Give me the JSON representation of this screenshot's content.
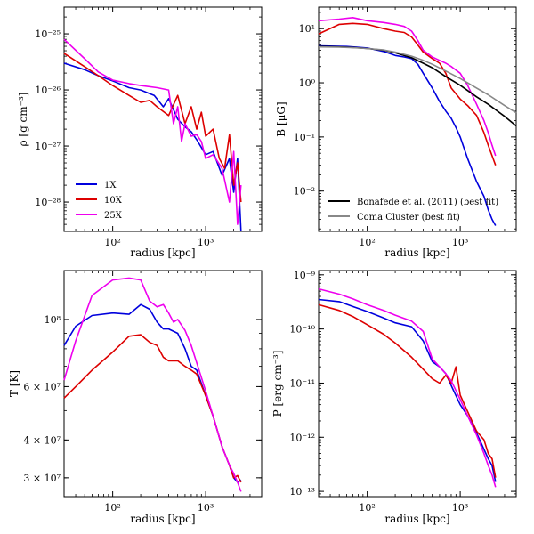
{
  "chart_data": [
    {
      "type": "line",
      "title": "",
      "xlabel": "radius [kpc]",
      "ylabel": "ρ  [g cm⁻³]",
      "xscale": "log",
      "yscale": "log",
      "xlim": [
        30,
        4000
      ],
      "ylim": [
        3e-29,
        3e-25
      ],
      "xticks": [
        {
          "v": 100,
          "label": "10²"
        },
        {
          "v": 1000,
          "label": "10³"
        }
      ],
      "yticks": [
        {
          "v": 1e-28,
          "label": "10⁻²⁸"
        },
        {
          "v": 1e-27,
          "label": "10⁻²⁷"
        },
        {
          "v": 1e-26,
          "label": "10⁻²⁶"
        },
        {
          "v": 1e-25,
          "label": "10⁻²⁵"
        }
      ],
      "legend_position": "bottom-left",
      "legend": [
        "1X",
        "10X",
        "25X"
      ],
      "series": [
        {
          "name": "1X",
          "color": "#0000dd",
          "x": [
            30,
            50,
            70,
            100,
            150,
            200,
            280,
            350,
            400,
            500,
            600,
            700,
            800,
            1000,
            1200,
            1500,
            1800,
            2000,
            2200,
            2400
          ],
          "y": [
            3e-26,
            2.3e-26,
            1.8e-26,
            1.45e-26,
            1.1e-26,
            1e-26,
            8e-27,
            5e-27,
            7e-27,
            3e-27,
            2.2e-27,
            1.8e-27,
            1.3e-27,
            7e-28,
            8e-28,
            3e-28,
            6e-28,
            1.5e-28,
            6e-28,
            3e-29
          ]
        },
        {
          "name": "10X",
          "color": "#dd0000",
          "x": [
            30,
            50,
            70,
            100,
            150,
            200,
            250,
            300,
            400,
            500,
            600,
            700,
            800,
            900,
            1000,
            1200,
            1400,
            1600,
            1800,
            2000,
            2200,
            2400
          ],
          "y": [
            4.5e-26,
            2.6e-26,
            1.8e-26,
            1.2e-26,
            8e-27,
            6e-27,
            6.5e-27,
            5e-27,
            3.5e-27,
            8e-27,
            2.5e-27,
            5e-27,
            2e-27,
            4e-27,
            1.5e-27,
            2e-27,
            6e-28,
            4e-28,
            1.6e-27,
            2e-28,
            5e-28,
            1e-28
          ]
        },
        {
          "name": "25X",
          "color": "#ee00ee",
          "x": [
            30,
            50,
            70,
            100,
            150,
            200,
            300,
            400,
            450,
            500,
            550,
            600,
            700,
            800,
            900,
            1000,
            1200,
            1500,
            1800,
            2000,
            2200,
            2400
          ],
          "y": [
            8e-26,
            3.6e-26,
            2.1e-26,
            1.5e-26,
            1.3e-26,
            1.2e-26,
            1.1e-26,
            1e-26,
            2.5e-27,
            5e-27,
            1.2e-27,
            2.5e-27,
            1.5e-27,
            1.6e-27,
            1.2e-27,
            6e-28,
            7e-28,
            4e-28,
            1e-28,
            8e-28,
            4e-29,
            2e-28
          ]
        }
      ]
    },
    {
      "type": "line",
      "title": "",
      "xlabel": "radius [kpc]",
      "ylabel": "B  [μG]",
      "xscale": "log",
      "yscale": "log",
      "xlim": [
        30,
        4000
      ],
      "ylim": [
        0.0018,
        25
      ],
      "xticks": [
        {
          "v": 100,
          "label": "10²"
        },
        {
          "v": 1000,
          "label": "10³"
        }
      ],
      "yticks": [
        {
          "v": 0.01,
          "label": "10⁻²"
        },
        {
          "v": 0.1,
          "label": "10⁻¹"
        },
        {
          "v": 1,
          "label": "10⁰"
        },
        {
          "v": 10,
          "label": "10¹"
        }
      ],
      "legend_position": "bottom-right",
      "legend": [
        "Bonafede et al. (2011) (best fit)",
        "Coma Cluster (best fit)"
      ],
      "series": [
        {
          "name": "1X",
          "color": "#0000dd",
          "x": [
            30,
            60,
            100,
            150,
            200,
            250,
            300,
            350,
            400,
            500,
            600,
            700,
            800,
            900,
            1000,
            1200,
            1500,
            1800,
            2000,
            2200,
            2400
          ],
          "y": [
            4.8,
            4.7,
            4.4,
            3.8,
            3.2,
            3,
            2.8,
            2.2,
            1.5,
            0.8,
            0.45,
            0.3,
            0.22,
            0.15,
            0.1,
            0.04,
            0.015,
            0.008,
            0.0045,
            0.003,
            0.0023
          ]
        },
        {
          "name": "10X",
          "color": "#dd0000",
          "x": [
            30,
            50,
            70,
            100,
            150,
            200,
            250,
            300,
            350,
            400,
            500,
            600,
            700,
            800,
            1000,
            1200,
            1500,
            1800,
            2000,
            2200,
            2400
          ],
          "y": [
            8,
            12,
            12.5,
            12,
            10,
            9,
            8.5,
            7,
            5,
            3.7,
            2.8,
            2.3,
            1.5,
            0.8,
            0.5,
            0.38,
            0.25,
            0.12,
            0.07,
            0.045,
            0.03
          ]
        },
        {
          "name": "25X",
          "color": "#ee00ee",
          "x": [
            30,
            50,
            70,
            100,
            150,
            200,
            250,
            300,
            350,
            400,
            500,
            600,
            700,
            800,
            1000,
            1200,
            1500,
            1800,
            2000,
            2200,
            2400
          ],
          "y": [
            14,
            15,
            16,
            14,
            13,
            12,
            11,
            9,
            6,
            4,
            3,
            2.6,
            2.3,
            2,
            1.5,
            0.9,
            0.4,
            0.2,
            0.12,
            0.07,
            0.045
          ]
        },
        {
          "name": "Bonafede et al. (2011) (best fit)",
          "color": "#000000",
          "x": [
            30,
            50,
            70,
            100,
            150,
            200,
            300,
            400,
            500,
            700,
            1000,
            1500,
            2000,
            3000,
            4000
          ],
          "y": [
            4.7,
            4.6,
            4.5,
            4.3,
            4,
            3.6,
            2.9,
            2.3,
            1.9,
            1.3,
            0.9,
            0.55,
            0.4,
            0.24,
            0.16
          ]
        },
        {
          "name": "Coma Cluster (best fit)",
          "color": "#888888",
          "x": [
            30,
            50,
            70,
            100,
            150,
            200,
            300,
            400,
            500,
            700,
            1000,
            1500,
            2000,
            3000,
            4000
          ],
          "y": [
            4.6,
            4.55,
            4.45,
            4.3,
            4.05,
            3.7,
            3.1,
            2.6,
            2.2,
            1.65,
            1.2,
            0.8,
            0.6,
            0.38,
            0.28
          ]
        }
      ]
    },
    {
      "type": "line",
      "title": "",
      "xlabel": "radius [kpc]",
      "ylabel": "T  [K]",
      "xscale": "log",
      "yscale": "log",
      "xlim": [
        30,
        4000
      ],
      "ylim": [
        26000000.0,
        145000000.0
      ],
      "xticks": [
        {
          "v": 100,
          "label": "10²"
        },
        {
          "v": 1000,
          "label": "10³"
        }
      ],
      "yticks": [
        {
          "v": 30000000.0,
          "label": "3 × 10⁷"
        },
        {
          "v": 40000000.0,
          "label": "4 × 10⁷"
        },
        {
          "v": 60000000.0,
          "label": "6 × 10⁷"
        },
        {
          "v": 100000000.0,
          "label": "10⁸"
        }
      ],
      "series": [
        {
          "name": "1X",
          "color": "#0000dd",
          "x": [
            30,
            40,
            60,
            100,
            150,
            200,
            250,
            300,
            350,
            400,
            500,
            600,
            700,
            800,
            1000,
            1200,
            1500,
            1800,
            2000,
            2200,
            2400
          ],
          "y": [
            82000000.0,
            95000000.0,
            103000000.0,
            105000000.0,
            104000000.0,
            112000000.0,
            108000000.0,
            98000000.0,
            93000000.0,
            93000000.0,
            90000000.0,
            80000000.0,
            70000000.0,
            68000000.0,
            56000000.0,
            48000000.0,
            38000000.0,
            33000000.0,
            30000000.0,
            29000000.0,
            29500000.0
          ]
        },
        {
          "name": "10X",
          "color": "#dd0000",
          "x": [
            30,
            40,
            60,
            100,
            150,
            200,
            250,
            300,
            350,
            400,
            500,
            600,
            700,
            800,
            1000,
            1200,
            1500,
            1800,
            2000,
            2200,
            2400
          ],
          "y": [
            55000000.0,
            60000000.0,
            68000000.0,
            78000000.0,
            88000000.0,
            89000000.0,
            84000000.0,
            82000000.0,
            75000000.0,
            73000000.0,
            73000000.0,
            70000000.0,
            68000000.0,
            66000000.0,
            56000000.0,
            48000000.0,
            38000000.0,
            33000000.0,
            30000000.0,
            30500000.0,
            29000000.0
          ]
        },
        {
          "name": "25X",
          "color": "#ee00ee",
          "x": [
            30,
            40,
            60,
            100,
            150,
            200,
            250,
            300,
            350,
            400,
            450,
            500,
            600,
            700,
            800,
            1000,
            1200,
            1500,
            1800,
            2000,
            2200,
            2400
          ],
          "y": [
            63000000.0,
            85000000.0,
            120000000.0,
            135000000.0,
            137000000.0,
            135000000.0,
            115000000.0,
            110000000.0,
            112000000.0,
            105000000.0,
            98000000.0,
            100000000.0,
            92000000.0,
            82000000.0,
            72000000.0,
            58000000.0,
            48000000.0,
            38000000.0,
            33000000.0,
            31000000.0,
            29000000.0,
            27000000.0
          ]
        }
      ]
    },
    {
      "type": "line",
      "title": "",
      "xlabel": "radius [kpc]",
      "ylabel": "P  [erg cm⁻³]",
      "xscale": "log",
      "yscale": "log",
      "xlim": [
        30,
        4000
      ],
      "ylim": [
        8e-14,
        1.2e-09
      ],
      "xticks": [
        {
          "v": 100,
          "label": "10²"
        },
        {
          "v": 1000,
          "label": "10³"
        }
      ],
      "yticks": [
        {
          "v": 1e-13,
          "label": "10⁻¹³"
        },
        {
          "v": 1e-12,
          "label": "10⁻¹²"
        },
        {
          "v": 1e-11,
          "label": "10⁻¹¹"
        },
        {
          "v": 1e-10,
          "label": "10⁻¹⁰"
        },
        {
          "v": 1e-09,
          "label": "10⁻⁹"
        }
      ],
      "series": [
        {
          "name": "1X",
          "color": "#0000dd",
          "x": [
            30,
            50,
            70,
            100,
            150,
            200,
            300,
            400,
            500,
            600,
            700,
            800,
            1000,
            1200,
            1500,
            1800,
            2000,
            2200,
            2400
          ],
          "y": [
            3.5e-10,
            3.2e-10,
            2.6e-10,
            2.1e-10,
            1.6e-10,
            1.3e-10,
            1.1e-10,
            6e-11,
            2.5e-11,
            2e-11,
            1.5e-11,
            9e-12,
            4e-12,
            2.5e-12,
            1.2e-12,
            6e-13,
            4e-13,
            3e-13,
            1.5e-13
          ]
        },
        {
          "name": "10X",
          "color": "#dd0000",
          "x": [
            30,
            50,
            70,
            100,
            150,
            200,
            300,
            400,
            500,
            600,
            700,
            800,
            900,
            1000,
            1200,
            1500,
            1800,
            2000,
            2200,
            2400
          ],
          "y": [
            2.8e-10,
            2.2e-10,
            1.7e-10,
            1.2e-10,
            8e-11,
            5.5e-11,
            3e-11,
            1.8e-11,
            1.2e-11,
            1e-11,
            1.4e-11,
            1e-11,
            2e-11,
            6e-12,
            3e-12,
            1.3e-12,
            9e-13,
            5e-13,
            4e-13,
            1.8e-13
          ]
        },
        {
          "name": "25X",
          "color": "#ee00ee",
          "x": [
            30,
            50,
            70,
            100,
            150,
            200,
            300,
            400,
            500,
            600,
            700,
            800,
            1000,
            1200,
            1500,
            1800,
            2000,
            2200,
            2400
          ],
          "y": [
            5.5e-10,
            4.4e-10,
            3.6e-10,
            2.8e-10,
            2.2e-10,
            1.8e-10,
            1.4e-10,
            9e-11,
            2.8e-11,
            2e-11,
            1.5e-11,
            1.1e-11,
            5e-12,
            2.5e-12,
            1.1e-12,
            5e-13,
            3e-13,
            2e-13,
            1.2e-13
          ]
        }
      ]
    }
  ]
}
